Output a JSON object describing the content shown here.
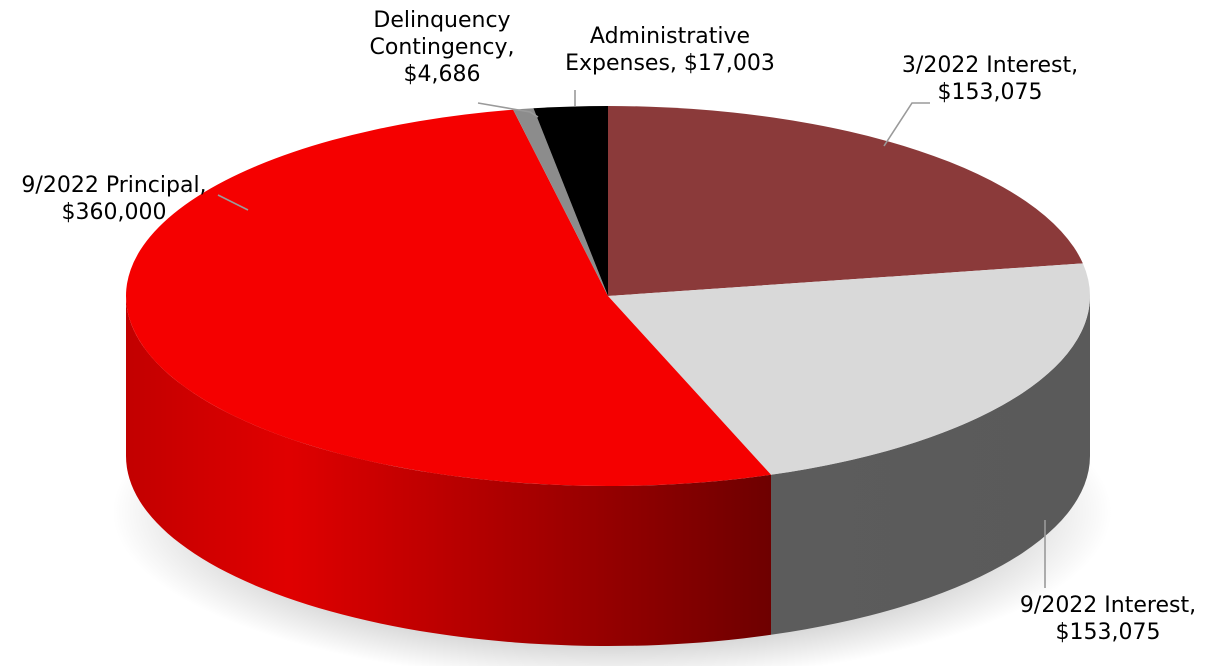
{
  "chart_data": {
    "type": "pie",
    "title": "",
    "style": "3d",
    "slices": [
      {
        "category": "3/2022 Interest",
        "value": 153075,
        "label": [
          "3/2022 Interest,",
          "$153,075"
        ],
        "color": "#8b3a3a"
      },
      {
        "category": "9/2022 Interest",
        "value": 153075,
        "label": [
          "9/2022 Interest,",
          "$153,075"
        ],
        "color": "#d9d9d9"
      },
      {
        "category": "9/2022 Principal",
        "value": 360000,
        "label": [
          "9/2022 Principal,",
          "$360,000"
        ],
        "color": "#f50000"
      },
      {
        "category": "Delinquency Contingency",
        "value": 4686,
        "label": [
          "Delinquency",
          "Contingency,",
          "$4,686"
        ],
        "color": "#8c8c8c"
      },
      {
        "category": "Administrative Expenses",
        "value": 17003,
        "label": [
          "Administrative",
          "Expenses, $17,003"
        ],
        "color": "#000000"
      }
    ]
  }
}
